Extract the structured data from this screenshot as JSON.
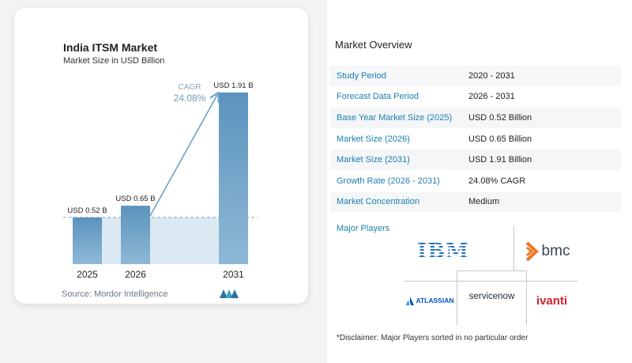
{
  "chart": {
    "title": "India ITSM Market",
    "subtitle": "Market Size in USD Billion",
    "cagr_label": "CAGR",
    "cagr_value": "24.08%",
    "source": "Source:  Mordor Intelligence"
  },
  "chart_data": {
    "type": "bar",
    "categories": [
      "2025",
      "2026",
      "2031"
    ],
    "values": [
      0.52,
      0.65,
      1.91
    ],
    "data_labels": [
      "USD 0.52 B",
      "USD 0.65 B",
      "USD 1.91 B"
    ],
    "title": "India ITSM Market",
    "subtitle": "Market Size in USD Billion",
    "xlabel": "",
    "ylabel": "",
    "ylim": [
      0,
      1.91
    ],
    "grid": false,
    "annotation": "CAGR 24.08%"
  },
  "overview": {
    "title": "Market Overview",
    "rows": [
      {
        "label": "Study Period",
        "value": "2020 - 2031"
      },
      {
        "label": "Forecast Data Period",
        "value": "2026 - 2031"
      },
      {
        "label": "Base Year Market Size (2025)",
        "value": "USD 0.52 Billion"
      },
      {
        "label": "Market Size (2026)",
        "value": "USD 0.65 Billion"
      },
      {
        "label": "Market Size (2031)",
        "value": "USD 1.91 Billion"
      },
      {
        "label": "Growth Rate (2026 - 2031)",
        "value": "24.08% CAGR"
      },
      {
        "label": "Market Concentration",
        "value": "Medium"
      }
    ],
    "players_label": "Major Players",
    "players": {
      "ibm": "IBM",
      "bmc": "bmc",
      "atlassian": "ATLASSIAN",
      "servicenow": "servicenow",
      "ivanti": "ivanti"
    },
    "disclaimer": "*Disclaimer: Major Players sorted in no particular order"
  },
  "colors": {
    "bar_top": "#5b93bd",
    "bar_bottom": "#8fb8d6",
    "accent_blue": "#1b7fb3",
    "projection_fill": "#dbe9f2",
    "bmc_orange": "#ee7623",
    "ivanti_red": "#d71f2a"
  }
}
